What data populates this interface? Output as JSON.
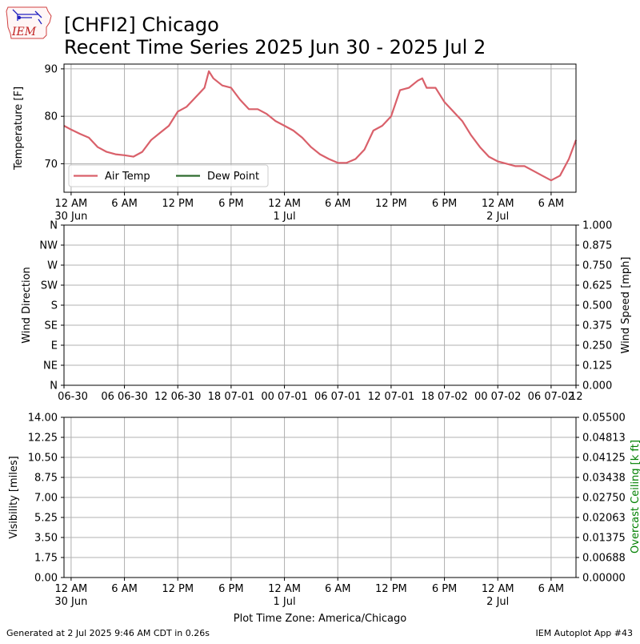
{
  "header": {
    "logo_text": "IEM",
    "title_line1": "[CHFI2] Chicago",
    "title_line2": "Recent Time Series 2025 Jun 30 - 2025 Jul 2"
  },
  "footer": {
    "generated": "Generated at 2 Jul 2025 9:46 AM CDT in 0.26s",
    "app": "IEM Autoplot App #43",
    "timezone_label": "Plot Time Zone: America/Chicago"
  },
  "colors": {
    "air_temp": "#d9606a",
    "dew_point": "#2e6b2e",
    "ceiling_label": "#008000",
    "grid": "#b0b0b0"
  },
  "chart_data": [
    {
      "type": "line",
      "ylabel": "Temperature [F]",
      "ylim": [
        64,
        91
      ],
      "y_ticks": [
        70,
        80,
        90
      ],
      "xlim_hours": [
        -0.8,
        56.8
      ],
      "x_ticks": [
        {
          "h": 0,
          "label": "12 AM",
          "sub": "30 Jun"
        },
        {
          "h": 6,
          "label": "6 AM",
          "sub": ""
        },
        {
          "h": 12,
          "label": "12 PM",
          "sub": ""
        },
        {
          "h": 18,
          "label": "6 PM",
          "sub": ""
        },
        {
          "h": 24,
          "label": "12 AM",
          "sub": "1 Jul"
        },
        {
          "h": 30,
          "label": "6 AM",
          "sub": ""
        },
        {
          "h": 36,
          "label": "12 PM",
          "sub": ""
        },
        {
          "h": 42,
          "label": "6 PM",
          "sub": ""
        },
        {
          "h": 48,
          "label": "12 AM",
          "sub": "2 Jul"
        },
        {
          "h": 54,
          "label": "6 AM",
          "sub": ""
        }
      ],
      "legend": [
        "Air Temp",
        "Dew Point"
      ],
      "legend_placement": "lower-left",
      "grid": true,
      "series": [
        {
          "name": "Air Temp",
          "x": [
            -0.8,
            0,
            1,
            2,
            3,
            4,
            5,
            6,
            7,
            8,
            9,
            10,
            11,
            12,
            13,
            14,
            15,
            15.5,
            16,
            17,
            18,
            19,
            20,
            21,
            22,
            23,
            24,
            25,
            26,
            27,
            28,
            29,
            30,
            31,
            32,
            33,
            34,
            35,
            36,
            37,
            38,
            39,
            39.5,
            40,
            41,
            42,
            43,
            44,
            45,
            46,
            47,
            48,
            49,
            50,
            51,
            52,
            53,
            54,
            55,
            56,
            56.8
          ],
          "y": [
            78,
            77.2,
            76.3,
            75.5,
            73.5,
            72.5,
            72,
            71.8,
            71.5,
            72.5,
            75,
            76.5,
            78,
            81,
            82,
            84,
            86,
            89.5,
            88,
            86.5,
            86,
            83.5,
            81.5,
            81.5,
            80.5,
            79,
            78,
            77,
            75.5,
            73.5,
            72,
            71,
            70.2,
            70.2,
            71,
            73,
            77,
            78,
            80,
            85.5,
            86,
            87.5,
            88,
            86,
            86,
            83,
            81,
            79,
            76,
            73.5,
            71.5,
            70.5,
            70,
            69.5,
            69.5,
            68.5,
            67.5,
            66.5,
            67.5,
            71,
            75
          ]
        },
        {
          "name": "Dew Point",
          "x": [],
          "y": []
        }
      ]
    },
    {
      "type": "line",
      "ylabel": "Wind Direction",
      "ylabel_right": "Wind Speed [mph]",
      "y_ticks_left": [
        "N",
        "NE",
        "E",
        "SE",
        "S",
        "SW",
        "W",
        "NW",
        "N"
      ],
      "y_ticks_right": [
        "0.000",
        "0.125",
        "0.250",
        "0.375",
        "0.500",
        "0.625",
        "0.750",
        "0.875",
        "1.000"
      ],
      "ylim_right": [
        0,
        1
      ],
      "x_ticks": [
        {
          "h": -0.8,
          "label": "06-30"
        },
        {
          "h": 6,
          "label": "06 06-30"
        },
        {
          "h": 12,
          "label": "12 06-30"
        },
        {
          "h": 18,
          "label": "18 07-01"
        },
        {
          "h": 24,
          "label": "00 07-01"
        },
        {
          "h": 30,
          "label": "06 07-01"
        },
        {
          "h": 36,
          "label": "12 07-01"
        },
        {
          "h": 42,
          "label": "18 07-02"
        },
        {
          "h": 48,
          "label": "00 07-02"
        },
        {
          "h": 54,
          "label": "06 07-02"
        },
        {
          "h": 56.8,
          "label": "12"
        }
      ],
      "grid": true,
      "series": []
    },
    {
      "type": "line",
      "ylabel": "Visibility [miles]",
      "ylabel_right": "Overcast Ceiling [k ft]",
      "y_ticks_left": [
        "0.00",
        "1.75",
        "3.50",
        "5.25",
        "7.00",
        "8.75",
        "10.50",
        "12.25",
        "14.00"
      ],
      "ylim_left": [
        0,
        14
      ],
      "y_ticks_right": [
        "0.00000",
        "0.00688",
        "0.01375",
        "0.02063",
        "0.02750",
        "0.03438",
        "0.04125",
        "0.04813",
        "0.05500"
      ],
      "ylim_right": [
        0,
        0.055
      ],
      "x_ticks": [
        {
          "h": 0,
          "label": "12 AM",
          "sub": "30 Jun"
        },
        {
          "h": 6,
          "label": "6 AM",
          "sub": ""
        },
        {
          "h": 12,
          "label": "12 PM",
          "sub": ""
        },
        {
          "h": 18,
          "label": "6 PM",
          "sub": ""
        },
        {
          "h": 24,
          "label": "12 AM",
          "sub": "1 Jul"
        },
        {
          "h": 30,
          "label": "6 AM",
          "sub": ""
        },
        {
          "h": 36,
          "label": "12 PM",
          "sub": ""
        },
        {
          "h": 42,
          "label": "6 PM",
          "sub": ""
        },
        {
          "h": 48,
          "label": "12 AM",
          "sub": "2 Jul"
        },
        {
          "h": 54,
          "label": "6 AM",
          "sub": ""
        }
      ],
      "grid": true,
      "series": []
    }
  ]
}
